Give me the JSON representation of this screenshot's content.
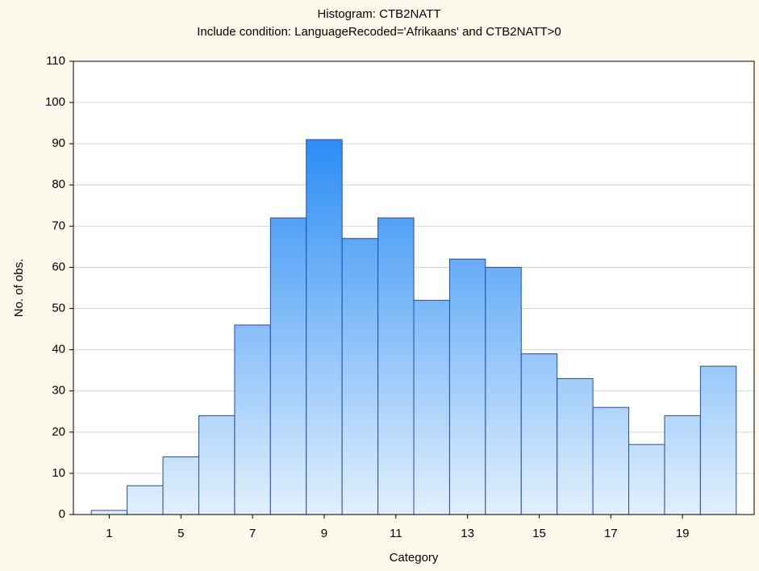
{
  "chart_data": {
    "type": "histogram",
    "title": "Histogram: CTB2NATT",
    "subtitle": "Include condition: LanguageRecoded='Afrikaans' and CTB2NATT>0",
    "x_label": "Category",
    "y_label": "No. of obs.",
    "categories": [
      "1",
      null,
      "5",
      null,
      "7",
      null,
      "9",
      null,
      "11",
      null,
      "13",
      null,
      "15",
      null,
      "17",
      null,
      "19",
      null
    ],
    "values": [
      1,
      7,
      14,
      24,
      46,
      72,
      91,
      67,
      72,
      52,
      62,
      60,
      39,
      33,
      26,
      17,
      24,
      36
    ],
    "color": "#2a8cf5",
    "ylim": [
      0,
      110
    ],
    "yticks": [
      0,
      10,
      20,
      30,
      40,
      50,
      60,
      70,
      80,
      90,
      100,
      110
    ],
    "grid": true
  }
}
